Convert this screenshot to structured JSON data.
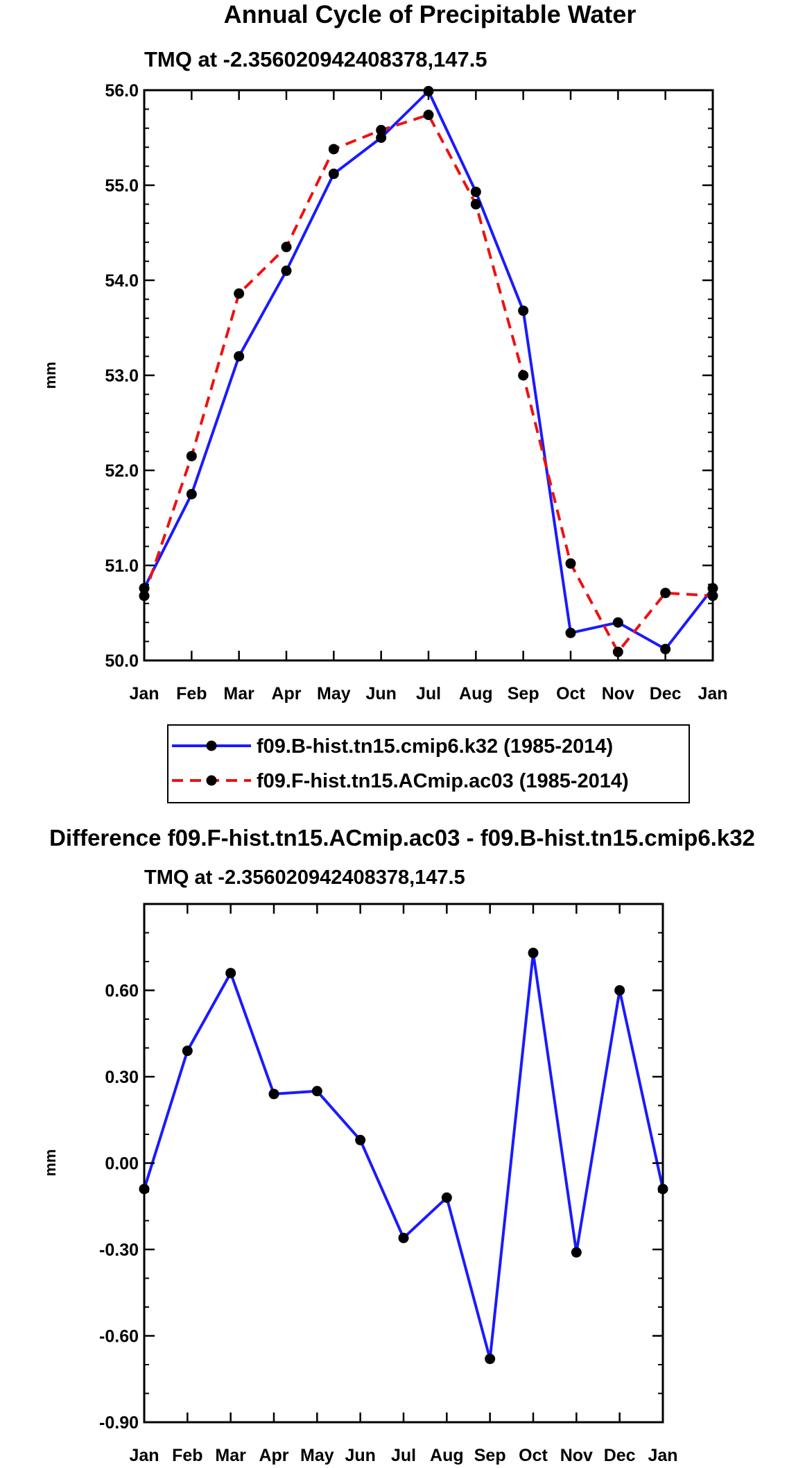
{
  "chart_data": [
    {
      "type": "line",
      "title": "Annual Cycle of Precipitable Water",
      "subtitle": "TMQ at -2.356020942408378,147.5",
      "xlabel": "",
      "ylabel": "mm",
      "categories": [
        "Jan",
        "Feb",
        "Mar",
        "Apr",
        "May",
        "Jun",
        "Jul",
        "Aug",
        "Sep",
        "Oct",
        "Nov",
        "Dec",
        "Jan"
      ],
      "ylim": [
        50.0,
        56.0
      ],
      "yticks": [
        50.0,
        51.0,
        52.0,
        53.0,
        54.0,
        55.0,
        56.0
      ],
      "ytick_labels": [
        "50.0",
        "51.0",
        "52.0",
        "53.0",
        "54.0",
        "55.0",
        "56.0"
      ],
      "series": [
        {
          "name": "f09.B-hist.tn15.cmip6.k32 (1985-2014)",
          "color": "#1a1aff",
          "dash": "solid",
          "values": [
            50.76,
            51.75,
            53.2,
            54.1,
            55.12,
            55.5,
            55.99,
            54.93,
            53.68,
            50.29,
            50.4,
            50.12,
            50.76
          ]
        },
        {
          "name": "f09.F-hist.tn15.ACmip.ac03 (1985-2014)",
          "color": "#ee1111",
          "dash": "dashed",
          "values": [
            50.68,
            52.15,
            53.86,
            54.35,
            55.38,
            55.58,
            55.74,
            54.8,
            53.0,
            51.02,
            50.09,
            50.71,
            50.68
          ]
        }
      ],
      "legend_position": "bottom"
    },
    {
      "type": "line",
      "title": "Difference f09.F-hist.tn15.ACmip.ac03 - f09.B-hist.tn15.cmip6.k32",
      "subtitle": "TMQ at -2.356020942408378,147.5",
      "xlabel": "",
      "ylabel": "mm",
      "categories": [
        "Jan",
        "Feb",
        "Mar",
        "Apr",
        "May",
        "Jun",
        "Jul",
        "Aug",
        "Sep",
        "Oct",
        "Nov",
        "Dec",
        "Jan"
      ],
      "ylim": [
        -0.9,
        0.9
      ],
      "yticks": [
        -0.9,
        -0.6,
        -0.3,
        0.0,
        0.3,
        0.6
      ],
      "ytick_labels": [
        "-0.90",
        "-0.60",
        "-0.30",
        "0.00",
        "0.30",
        "0.60"
      ],
      "series": [
        {
          "name": "Difference",
          "color": "#1a1aff",
          "dash": "solid",
          "values": [
            -0.09,
            0.39,
            0.66,
            0.24,
            0.25,
            0.08,
            -0.26,
            -0.12,
            -0.68,
            0.73,
            -0.31,
            0.6,
            -0.09
          ]
        }
      ]
    }
  ]
}
